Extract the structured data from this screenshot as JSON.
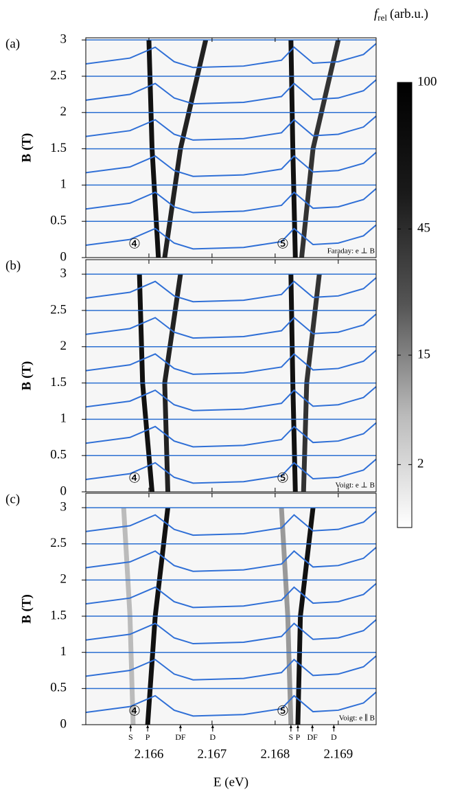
{
  "chart_data": [
    {
      "type": "line",
      "panel": "(a)",
      "ylabel": "B (T)",
      "mode": "Faraday: e ⊥ B",
      "circle_left": "④",
      "circle_right": "⑤",
      "xlim": [
        2.165,
        2.1696
      ],
      "xticks": [
        2.166,
        2.167,
        2.168,
        2.169
      ],
      "ylim": [
        0,
        3.03
      ],
      "yticks": [
        0,
        0.5,
        1,
        1.5,
        2,
        2.5,
        3
      ],
      "grid": true,
      "grid_color": "#2a6fd1",
      "x": [
        2.165,
        2.1657,
        2.1661,
        2.1664,
        2.1667,
        2.1675,
        2.1681,
        2.1683,
        2.1686,
        2.169,
        2.1694,
        2.1696
      ],
      "series": [
        {
          "color": "#2f6fd6",
          "values": [
            0.17,
            0.25,
            0.4,
            0.2,
            0.12,
            0.14,
            0.22,
            0.4,
            0.18,
            0.2,
            0.3,
            0.45
          ]
        },
        {
          "color": "#2f6fd6",
          "values": [
            0.67,
            0.75,
            0.9,
            0.7,
            0.62,
            0.64,
            0.72,
            0.9,
            0.68,
            0.7,
            0.8,
            0.95
          ]
        },
        {
          "color": "#2f6fd6",
          "values": [
            1.17,
            1.25,
            1.4,
            1.2,
            1.12,
            1.14,
            1.22,
            1.4,
            1.18,
            1.2,
            1.3,
            1.45
          ]
        },
        {
          "color": "#2f6fd6",
          "values": [
            1.67,
            1.75,
            1.9,
            1.7,
            1.62,
            1.64,
            1.72,
            1.9,
            1.68,
            1.7,
            1.8,
            1.95
          ]
        },
        {
          "color": "#2f6fd6",
          "values": [
            2.17,
            2.25,
            2.4,
            2.2,
            2.12,
            2.14,
            2.22,
            2.4,
            2.18,
            2.2,
            2.3,
            2.45
          ]
        },
        {
          "color": "#2f6fd6",
          "values": [
            2.67,
            2.75,
            2.9,
            2.7,
            2.62,
            2.64,
            2.72,
            2.9,
            2.68,
            2.7,
            2.8,
            2.95
          ]
        }
      ],
      "dark_lines": [
        {
          "color": "#111",
          "x": [
            2.16615,
            2.16605,
            2.166
          ],
          "values": [
            0,
            1.5,
            3
          ]
        },
        {
          "color": "#222",
          "x": [
            2.16625,
            2.1665,
            2.1669
          ],
          "values": [
            0,
            1.5,
            3
          ]
        },
        {
          "color": "#111",
          "x": [
            2.16832,
            2.16828,
            2.16825
          ],
          "values": [
            0,
            1.5,
            3
          ]
        },
        {
          "color": "#333",
          "x": [
            2.16842,
            2.1686,
            2.169
          ],
          "values": [
            0,
            1.5,
            3
          ]
        }
      ]
    },
    {
      "type": "line",
      "panel": "(b)",
      "ylabel": "B (T)",
      "mode": "Voigt: e ⊥ B",
      "circle_left": "④",
      "circle_right": "⑤",
      "xlim": [
        2.165,
        2.1696
      ],
      "xticks": [
        2.166,
        2.167,
        2.168,
        2.169
      ],
      "ylim": [
        0,
        3.2
      ],
      "yticks": [
        0,
        0.5,
        1,
        1.5,
        2,
        2.5,
        3
      ],
      "grid": true,
      "grid_color": "#2a6fd1",
      "x": [
        2.165,
        2.1657,
        2.1661,
        2.1664,
        2.1667,
        2.1675,
        2.1681,
        2.1683,
        2.1686,
        2.169,
        2.1694,
        2.1696
      ],
      "series": [
        {
          "color": "#2f6fd6",
          "values": [
            0.17,
            0.25,
            0.4,
            0.2,
            0.12,
            0.14,
            0.22,
            0.4,
            0.18,
            0.2,
            0.3,
            0.45
          ]
        },
        {
          "color": "#2f6fd6",
          "values": [
            0.67,
            0.75,
            0.9,
            0.7,
            0.62,
            0.64,
            0.72,
            0.9,
            0.68,
            0.7,
            0.8,
            0.95
          ]
        },
        {
          "color": "#2f6fd6",
          "values": [
            1.17,
            1.25,
            1.4,
            1.2,
            1.12,
            1.14,
            1.22,
            1.4,
            1.18,
            1.2,
            1.3,
            1.45
          ]
        },
        {
          "color": "#2f6fd6",
          "values": [
            1.67,
            1.75,
            1.9,
            1.7,
            1.62,
            1.64,
            1.72,
            1.9,
            1.68,
            1.7,
            1.8,
            1.95
          ]
        },
        {
          "color": "#2f6fd6",
          "values": [
            2.17,
            2.25,
            2.4,
            2.2,
            2.12,
            2.14,
            2.22,
            2.4,
            2.18,
            2.2,
            2.3,
            2.45
          ]
        },
        {
          "color": "#2f6fd6",
          "values": [
            2.67,
            2.75,
            2.9,
            2.7,
            2.62,
            2.64,
            2.72,
            2.9,
            2.68,
            2.7,
            2.8,
            2.95
          ]
        }
      ],
      "dark_lines": [
        {
          "color": "#111",
          "x": [
            2.16605,
            2.1659,
            2.16585
          ],
          "values": [
            0,
            1.5,
            3
          ]
        },
        {
          "color": "#222",
          "x": [
            2.1663,
            2.16625,
            2.1665
          ],
          "values": [
            0,
            1.5,
            3
          ]
        },
        {
          "color": "#111",
          "x": [
            2.16832,
            2.16828,
            2.16825
          ],
          "values": [
            0,
            1.5,
            3
          ]
        },
        {
          "color": "#333",
          "x": [
            2.16845,
            2.1685,
            2.1687
          ],
          "values": [
            0,
            1.5,
            3
          ]
        }
      ]
    },
    {
      "type": "line",
      "panel": "(c)",
      "ylabel": "B (T)",
      "xlabel": "E (eV)",
      "mode": "Voigt: e ∥ B",
      "circle_left": "④",
      "circle_right": "⑤",
      "xlim": [
        2.165,
        2.1696
      ],
      "xticks": [
        2.166,
        2.167,
        2.168,
        2.169
      ],
      "ylim": [
        0,
        3.2
      ],
      "yticks": [
        0,
        0.5,
        1,
        1.5,
        2,
        2.5,
        3
      ],
      "grid": true,
      "grid_color": "#2a6fd1",
      "x": [
        2.165,
        2.1657,
        2.1661,
        2.1664,
        2.1667,
        2.1675,
        2.1681,
        2.1683,
        2.1686,
        2.169,
        2.1694,
        2.1696
      ],
      "series": [
        {
          "color": "#2f6fd6",
          "values": [
            0.17,
            0.25,
            0.4,
            0.2,
            0.12,
            0.14,
            0.22,
            0.4,
            0.18,
            0.2,
            0.3,
            0.45
          ]
        },
        {
          "color": "#2f6fd6",
          "values": [
            0.67,
            0.75,
            0.9,
            0.7,
            0.62,
            0.64,
            0.72,
            0.9,
            0.68,
            0.7,
            0.8,
            0.95
          ]
        },
        {
          "color": "#2f6fd6",
          "values": [
            1.17,
            1.25,
            1.4,
            1.2,
            1.12,
            1.14,
            1.22,
            1.4,
            1.18,
            1.2,
            1.3,
            1.45
          ]
        },
        {
          "color": "#2f6fd6",
          "values": [
            1.67,
            1.75,
            1.9,
            1.7,
            1.62,
            1.64,
            1.72,
            1.9,
            1.68,
            1.7,
            1.8,
            1.95
          ]
        },
        {
          "color": "#2f6fd6",
          "values": [
            2.17,
            2.25,
            2.4,
            2.2,
            2.12,
            2.14,
            2.22,
            2.4,
            2.18,
            2.2,
            2.3,
            2.45
          ]
        },
        {
          "color": "#2f6fd6",
          "values": [
            2.67,
            2.75,
            2.9,
            2.7,
            2.62,
            2.64,
            2.72,
            2.9,
            2.68,
            2.7,
            2.8,
            2.95
          ]
        }
      ],
      "dark_lines": [
        {
          "color": "#111",
          "x": [
            2.16598,
            2.1661,
            2.1663
          ],
          "values": [
            0,
            1.5,
            3
          ]
        },
        {
          "color": "#bbb",
          "x": [
            2.16575,
            2.1657,
            2.1656
          ],
          "values": [
            0,
            1.5,
            3
          ]
        },
        {
          "color": "#111",
          "x": [
            2.16836,
            2.1684,
            2.1686
          ],
          "values": [
            0,
            1.5,
            3
          ]
        },
        {
          "color": "#999",
          "x": [
            2.16825,
            2.1682,
            2.1681
          ],
          "values": [
            0,
            1.5,
            3
          ]
        }
      ],
      "markers": [
        {
          "label": "S",
          "x": 2.16571
        },
        {
          "label": "P",
          "x": 2.16598
        },
        {
          "label": "DF",
          "x": 2.1665
        },
        {
          "label": "D",
          "x": 2.16701
        },
        {
          "label": "S",
          "x": 2.16825
        },
        {
          "label": "P",
          "x": 2.16836
        },
        {
          "label": "DF",
          "x": 2.16859
        },
        {
          "label": "D",
          "x": 2.16893
        }
      ]
    },
    {
      "type": "colorbar",
      "title": "f",
      "title_sub": "rel",
      "title_unit": "(arb.u.)",
      "clim": [
        0,
        100
      ],
      "scale": "sqrt",
      "cticks": [
        100,
        45,
        15,
        2
      ]
    }
  ]
}
